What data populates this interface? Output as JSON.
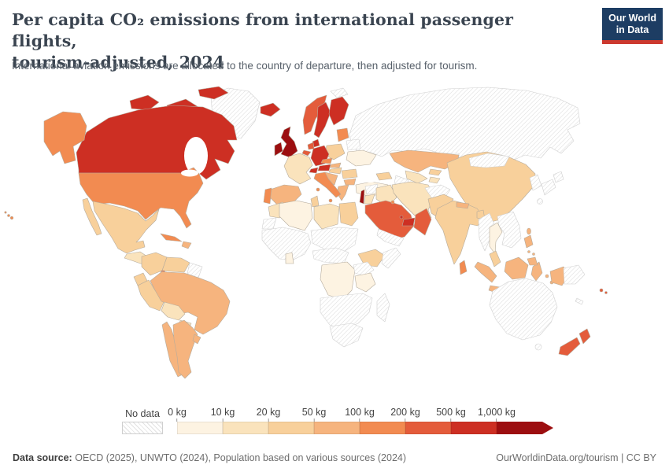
{
  "header": {
    "title_line1": "Per capita CO₂ emissions from international passenger flights,",
    "title_line2": "tourism-adjusted, 2024",
    "subtitle": "International aviation emissions are allocated to the country of departure, then adjusted for tourism.",
    "logo": {
      "line1": "Our World",
      "line2": "in Data",
      "bg_color": "#1d3d63",
      "accent_color": "#cc392f"
    }
  },
  "legend": {
    "no_data_label": "No data",
    "tick_labels": [
      "0 kg",
      "10 kg",
      "20 kg",
      "50 kg",
      "100 kg",
      "200 kg",
      "500 kg",
      "1,000 kg"
    ]
  },
  "footer": {
    "source_label": "Data source:",
    "source_text": "OECD (2025), UNWTO (2024), Population based on various sources (2024)",
    "right_text": "OurWorldinData.org/tourism | CC BY"
  },
  "map": {
    "ocean_color": "#ffffff",
    "data_border": "#b5ab9c",
    "nodata_border": "#d0d0d0",
    "hatch_line_color": "#dedede"
  },
  "chart_data": {
    "type": "heatmap",
    "variant": "world-choropleth",
    "title": "Per capita CO₂ emissions from international passenger flights, tourism-adjusted, 2024",
    "unit": "kg CO₂ per person",
    "legend_position": "bottom",
    "no_data": {
      "label": "No data",
      "style": "hatched"
    },
    "bins": [
      {
        "range": "0–10 kg",
        "color": "#fdf3e2"
      },
      {
        "range": "10–20 kg",
        "color": "#fae3bc"
      },
      {
        "range": "20–50 kg",
        "color": "#f8d09b"
      },
      {
        "range": "50–100 kg",
        "color": "#f6b47e"
      },
      {
        "range": "100–200 kg",
        "color": "#f28b51"
      },
      {
        "range": "200–500 kg",
        "color": "#e45c3b"
      },
      {
        "range": "500–1,000 kg",
        "color": "#cd2f23"
      },
      {
        "range": "1,000+ kg",
        "color": "#9c0e10"
      }
    ],
    "countries": {
      "canada": 6,
      "arctic_islands": 6,
      "greenland": -1,
      "usa": 4,
      "mexico": 2,
      "guatemala_nicaragua": 1,
      "costa_rica": 4,
      "panama": 6,
      "cuba": 4,
      "hispaniola": 3,
      "colombia": 2,
      "venezuela": 2,
      "guianas": -1,
      "ecuador": 2,
      "peru": 2,
      "brazil": 3,
      "bolivia": 1,
      "paraguay": 1,
      "chile": 3,
      "argentina": 3,
      "uruguay": 3,
      "iceland": 6,
      "uk": 7,
      "ireland": 7,
      "norway": 5,
      "sweden": 6,
      "finland": 6,
      "denmark": 6,
      "baltics": 4,
      "germany": 6,
      "netherlands": 5,
      "belgium": 5,
      "france": 1,
      "switzerland": 6,
      "austria": 6,
      "czechia": 4,
      "poland": 2,
      "belarus": -1,
      "ukraine": 0,
      "slovakia": 3,
      "hungary": 2,
      "romania": 2,
      "bulgaria": 3,
      "balkans": 3,
      "greece": 3,
      "italy": 4,
      "spain": 3,
      "portugal": 4,
      "turkey": 0,
      "svalbard": -1,
      "russia": -1,
      "kazakhstan": 3,
      "uzbekistan": 1,
      "turkmenistan": -1,
      "kyrgyzstan": 2,
      "tajikistan": 1,
      "caucasus": 2,
      "syria": -1,
      "israel": 7,
      "jordan": 1,
      "iraq": 1,
      "iran": 1,
      "saudi_arabia": 5,
      "yemen": -1,
      "oman": 5,
      "uae": 6,
      "qatar": 6,
      "kuwait": 4,
      "afghanistan": -1,
      "pakistan": 2,
      "india": 2,
      "nepal": 3,
      "bangladesh": 2,
      "sri_lanka": 4,
      "china": 2,
      "mongolia": -1,
      "korea": -1,
      "japan": -1,
      "taiwan": 3,
      "myanmar": -1,
      "indochina": -1,
      "thailand": 0,
      "malay_peninsula": 2,
      "sumatra": 3,
      "java": 3,
      "borneo": 3,
      "sulawesi": 3,
      "lesser_sunda": 3,
      "moluccas": 3,
      "philippines": 3,
      "west_papua": 3,
      "papua_new_guinea": -1,
      "australia": -1,
      "tasmania": -1,
      "new_zealand": 5,
      "fiji": 5,
      "new_caledonia": -1,
      "morocco": 1,
      "western_sahara": -1,
      "algeria": 0,
      "tunisia": 2,
      "libya": 1,
      "egypt": 2,
      "west_africa": -1,
      "ghana": 0,
      "sahel": -1,
      "ethiopia": 2,
      "somalia": -1,
      "central_africa": -1,
      "drc": 0,
      "east_africa": -1,
      "tanzania": 0,
      "southern_africa": -1,
      "south_africa": -1,
      "madagascar": -1
    }
  }
}
